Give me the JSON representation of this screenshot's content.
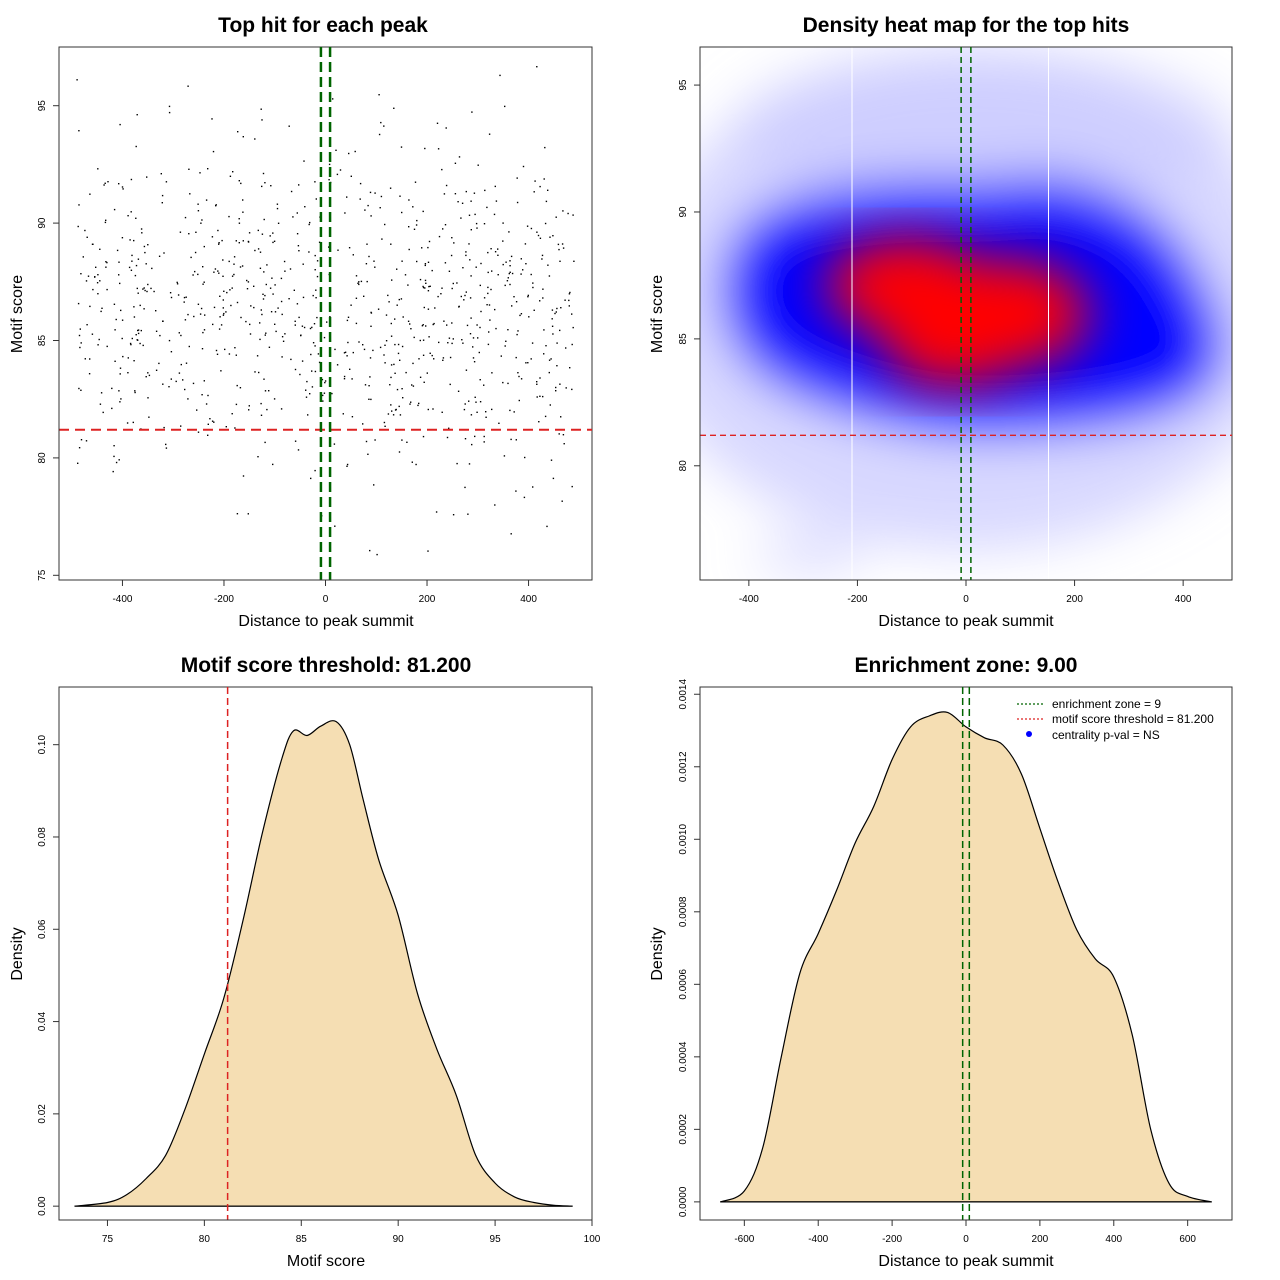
{
  "colors": {
    "points": "#000000",
    "threshold": "#dd2222",
    "zone": "#006400",
    "density_fill": "#f5deb3",
    "heat_low": "#ffffff",
    "heat_mid": "#0000ff",
    "heat_high": "#ff0000",
    "legend_dot": "#0000ff"
  },
  "chart_data": [
    {
      "id": "scatter",
      "type": "scatter",
      "title": "Top hit for each peak",
      "xlabel": "Distance to peak summit",
      "ylabel": "Motif score",
      "xlim": [
        -525,
        525
      ],
      "ylim": [
        74.8,
        97.5
      ],
      "xticks": [
        -400,
        -200,
        0,
        200,
        400
      ],
      "yticks": [
        75,
        80,
        85,
        90,
        95
      ],
      "threshold_y": 81.2,
      "zone_x": [
        -9,
        9
      ],
      "point_count": 950,
      "points_generated_from": {
        "x_range": [
          -490,
          490
        ],
        "y_mean": 86.3,
        "y_sd": 3.6
      }
    },
    {
      "id": "heatmap",
      "type": "heatmap",
      "title": "Density heat map for the top hits",
      "xlabel": "Distance to peak summit",
      "ylabel": "Motif score",
      "xlim": [
        -490,
        490
      ],
      "ylim": [
        75.5,
        96.5
      ],
      "xticks": [
        -400,
        -200,
        0,
        200,
        400
      ],
      "yticks": [
        80,
        85,
        90,
        95
      ],
      "threshold_y": 81.2,
      "zone_x": [
        -9,
        9
      ],
      "white_lines_x": [
        -210,
        152
      ],
      "hotspots": [
        {
          "x": -110,
          "y": 87.1,
          "level": "high"
        },
        {
          "x": 70,
          "y": 86.0,
          "level": "high"
        },
        {
          "x": -20,
          "y": 84.9,
          "level": "high"
        }
      ]
    },
    {
      "id": "score_density",
      "type": "area",
      "title": "Motif score threshold: 81.200",
      "xlabel": "Motif score",
      "ylabel": "Density",
      "xlim": [
        72.5,
        100
      ],
      "ylim": [
        -0.003,
        0.1125
      ],
      "xticks": [
        75,
        80,
        85,
        90,
        95,
        100
      ],
      "yticks": [
        0.0,
        0.02,
        0.04,
        0.06,
        0.08,
        0.1
      ],
      "ytick_labels": [
        "0.00",
        "0.02",
        "0.04",
        "0.06",
        "0.08",
        "0.10"
      ],
      "threshold_x": 81.2,
      "x": [
        73.3,
        75,
        76,
        77,
        78,
        79,
        80,
        81,
        82,
        83,
        84,
        84.6,
        85.3,
        86,
        86.8,
        87.5,
        88.2,
        89,
        90,
        91,
        92,
        93,
        94,
        95,
        96,
        97,
        98,
        99
      ],
      "y": [
        0.0,
        0.0008,
        0.0025,
        0.006,
        0.011,
        0.021,
        0.033,
        0.045,
        0.062,
        0.081,
        0.097,
        0.103,
        0.102,
        0.104,
        0.105,
        0.1,
        0.088,
        0.075,
        0.063,
        0.046,
        0.034,
        0.024,
        0.011,
        0.005,
        0.002,
        0.0008,
        0.0002,
        0.0
      ]
    },
    {
      "id": "distance_density",
      "type": "area",
      "title": "Enrichment zone: 9.00",
      "xlabel": "Distance to peak summit",
      "ylabel": "Density",
      "xlim": [
        -720,
        720
      ],
      "ylim": [
        -5e-05,
        0.00142
      ],
      "xticks": [
        -600,
        -400,
        -200,
        0,
        200,
        400,
        600
      ],
      "yticks": [
        0.0,
        0.0002,
        0.0004,
        0.0006,
        0.0008,
        0.001,
        0.0012,
        0.0014
      ],
      "ytick_labels": [
        "0.0000",
        "0.0002",
        "0.0004",
        "0.0006",
        "0.0008",
        "0.0010",
        "0.0012",
        "0.0014"
      ],
      "zone_x": [
        -9,
        9
      ],
      "x": [
        -665,
        -600,
        -550,
        -500,
        -450,
        -400,
        -350,
        -300,
        -250,
        -200,
        -150,
        -100,
        -50,
        0,
        50,
        100,
        150,
        200,
        250,
        300,
        350,
        400,
        450,
        500,
        550,
        600,
        665
      ],
      "y": [
        0.0,
        3e-05,
        0.00015,
        0.0004,
        0.00063,
        0.00074,
        0.00086,
        0.00099,
        0.00109,
        0.00122,
        0.00131,
        0.00134,
        0.00135,
        0.00131,
        0.00128,
        0.00126,
        0.00118,
        0.00103,
        0.00088,
        0.00075,
        0.00067,
        0.00062,
        0.00046,
        0.0002,
        5e-05,
        1.5e-05,
        0.0
      ]
    }
  ],
  "legend": {
    "items": [
      {
        "label": "enrichment zone = 9",
        "style": "dotted-line",
        "color": "#006400"
      },
      {
        "label": "motif score threshold = 81.200",
        "style": "dotted-line",
        "color": "#dd2222"
      },
      {
        "label": "centrality p-val = NS",
        "style": "dot",
        "color": "#0000ff"
      }
    ]
  }
}
